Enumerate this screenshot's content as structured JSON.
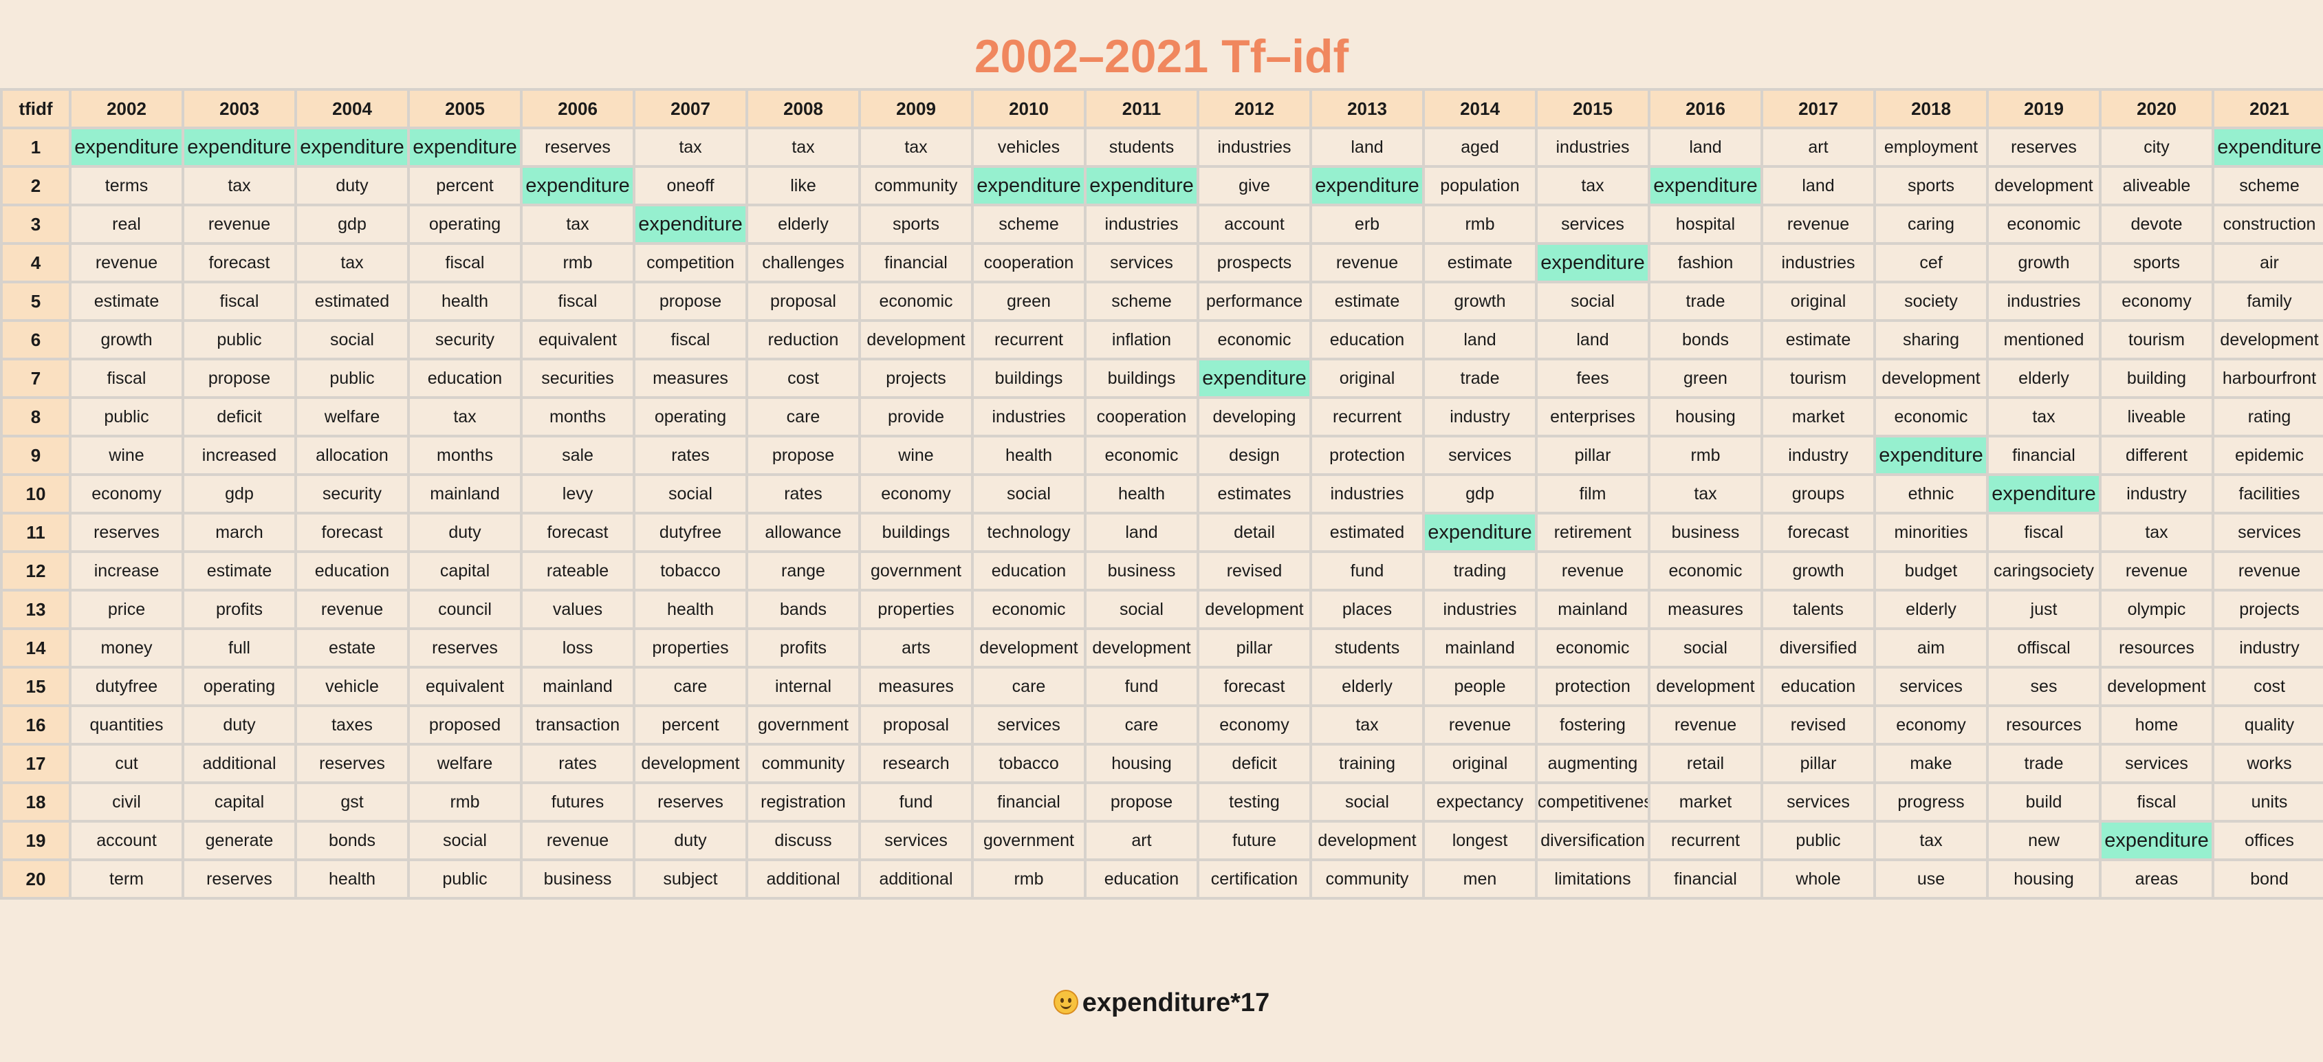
{
  "title": "2002–2021 Tf–idf",
  "table": {
    "corner_label": "tfidf",
    "highlight_word": "expenditure",
    "highlight_color": "#96f0cf",
    "years": [
      "2002",
      "2003",
      "2004",
      "2005",
      "2006",
      "2007",
      "2008",
      "2009",
      "2010",
      "2011",
      "2012",
      "2013",
      "2014",
      "2015",
      "2016",
      "2017",
      "2018",
      "2019",
      "2020",
      "2021"
    ],
    "ranks": [
      "1",
      "2",
      "3",
      "4",
      "5",
      "6",
      "7",
      "8",
      "9",
      "10",
      "11",
      "12",
      "13",
      "14",
      "15",
      "16",
      "17",
      "18",
      "19",
      "20"
    ],
    "rows": [
      [
        "expenditure",
        "expenditure",
        "expenditure",
        "expenditure",
        "reserves",
        "tax",
        "tax",
        "tax",
        "vehicles",
        "students",
        "industries",
        "land",
        "aged",
        "industries",
        "land",
        "art",
        "employment",
        "reserves",
        "city",
        "expenditure"
      ],
      [
        "terms",
        "tax",
        "duty",
        "percent",
        "expenditure",
        "oneoff",
        "like",
        "community",
        "expenditure",
        "expenditure",
        "give",
        "expenditure",
        "population",
        "tax",
        "expenditure",
        "land",
        "sports",
        "development",
        "aliveable",
        "scheme"
      ],
      [
        "real",
        "revenue",
        "gdp",
        "operating",
        "tax",
        "expenditure",
        "elderly",
        "sports",
        "scheme",
        "industries",
        "account",
        "erb",
        "rmb",
        "services",
        "hospital",
        "revenue",
        "caring",
        "economic",
        "devote",
        "construction"
      ],
      [
        "revenue",
        "forecast",
        "tax",
        "fiscal",
        "rmb",
        "competition",
        "challenges",
        "financial",
        "cooperation",
        "services",
        "prospects",
        "revenue",
        "estimate",
        "expenditure",
        "fashion",
        "industries",
        "cef",
        "growth",
        "sports",
        "air"
      ],
      [
        "estimate",
        "fiscal",
        "estimated",
        "health",
        "fiscal",
        "propose",
        "proposal",
        "economic",
        "green",
        "scheme",
        "performance",
        "estimate",
        "growth",
        "social",
        "trade",
        "original",
        "society",
        "industries",
        "economy",
        "family"
      ],
      [
        "growth",
        "public",
        "social",
        "security",
        "equivalent",
        "fiscal",
        "reduction",
        "development",
        "recurrent",
        "inflation",
        "economic",
        "education",
        "land",
        "land",
        "bonds",
        "estimate",
        "sharing",
        "mentioned",
        "tourism",
        "development"
      ],
      [
        "fiscal",
        "propose",
        "public",
        "education",
        "securities",
        "measures",
        "cost",
        "projects",
        "buildings",
        "buildings",
        "expenditure",
        "original",
        "trade",
        "fees",
        "green",
        "tourism",
        "development",
        "elderly",
        "building",
        "harbourfront"
      ],
      [
        "public",
        "deficit",
        "welfare",
        "tax",
        "months",
        "operating",
        "care",
        "provide",
        "industries",
        "cooperation",
        "developing",
        "recurrent",
        "industry",
        "enterprises",
        "housing",
        "market",
        "economic",
        "tax",
        "liveable",
        "rating"
      ],
      [
        "wine",
        "increased",
        "allocation",
        "months",
        "sale",
        "rates",
        "propose",
        "wine",
        "health",
        "economic",
        "design",
        "protection",
        "services",
        "pillar",
        "rmb",
        "industry",
        "expenditure",
        "financial",
        "different",
        "epidemic"
      ],
      [
        "economy",
        "gdp",
        "security",
        "mainland",
        "levy",
        "social",
        "rates",
        "economy",
        "social",
        "health",
        "estimates",
        "industries",
        "gdp",
        "film",
        "tax",
        "groups",
        "ethnic",
        "expenditure",
        "industry",
        "facilities"
      ],
      [
        "reserves",
        "march",
        "forecast",
        "duty",
        "forecast",
        "dutyfree",
        "allowance",
        "buildings",
        "technology",
        "land",
        "detail",
        "estimated",
        "expenditure",
        "retirement",
        "business",
        "forecast",
        "minorities",
        "fiscal",
        "tax",
        "services"
      ],
      [
        "increase",
        "estimate",
        "education",
        "capital",
        "rateable",
        "tobacco",
        "range",
        "government",
        "education",
        "business",
        "revised",
        "fund",
        "trading",
        "revenue",
        "economic",
        "growth",
        "budget",
        "caringsociety",
        "revenue",
        "revenue"
      ],
      [
        "price",
        "profits",
        "revenue",
        "council",
        "values",
        "health",
        "bands",
        "properties",
        "economic",
        "social",
        "development",
        "places",
        "industries",
        "mainland",
        "measures",
        "talents",
        "elderly",
        "just",
        "olympic",
        "projects"
      ],
      [
        "money",
        "full",
        "estate",
        "reserves",
        "loss",
        "properties",
        "profits",
        "arts",
        "development",
        "development",
        "pillar",
        "students",
        "mainland",
        "economic",
        "social",
        "diversified",
        "aim",
        "offiscal",
        "resources",
        "industry"
      ],
      [
        "dutyfree",
        "operating",
        "vehicle",
        "equivalent",
        "mainland",
        "care",
        "internal",
        "measures",
        "care",
        "fund",
        "forecast",
        "elderly",
        "people",
        "protection",
        "development",
        "education",
        "services",
        "ses",
        "development",
        "cost"
      ],
      [
        "quantities",
        "duty",
        "taxes",
        "proposed",
        "transaction",
        "percent",
        "government",
        "proposal",
        "services",
        "care",
        "economy",
        "tax",
        "revenue",
        "fostering",
        "revenue",
        "revised",
        "economy",
        "resources",
        "home",
        "quality"
      ],
      [
        "cut",
        "additional",
        "reserves",
        "welfare",
        "rates",
        "development",
        "community",
        "research",
        "tobacco",
        "housing",
        "deficit",
        "training",
        "original",
        "augmenting",
        "retail",
        "pillar",
        "make",
        "trade",
        "services",
        "works"
      ],
      [
        "civil",
        "capital",
        "gst",
        "rmb",
        "futures",
        "reserves",
        "registration",
        "fund",
        "financial",
        "propose",
        "testing",
        "social",
        "expectancy",
        "competitiveness",
        "market",
        "services",
        "progress",
        "build",
        "fiscal",
        "units"
      ],
      [
        "account",
        "generate",
        "bonds",
        "social",
        "revenue",
        "duty",
        "discuss",
        "services",
        "government",
        "art",
        "future",
        "development",
        "longest",
        "diversification",
        "recurrent",
        "public",
        "tax",
        "new",
        "expenditure",
        "offices"
      ],
      [
        "term",
        "reserves",
        "health",
        "public",
        "business",
        "subject",
        "additional",
        "additional",
        "rmb",
        "education",
        "certification",
        "community",
        "men",
        "limitations",
        "financial",
        "whole",
        "use",
        "housing",
        "areas",
        "bond"
      ]
    ]
  },
  "footer": {
    "emoji_icon": "smiling-face-icon",
    "text": "expenditure*17"
  }
}
